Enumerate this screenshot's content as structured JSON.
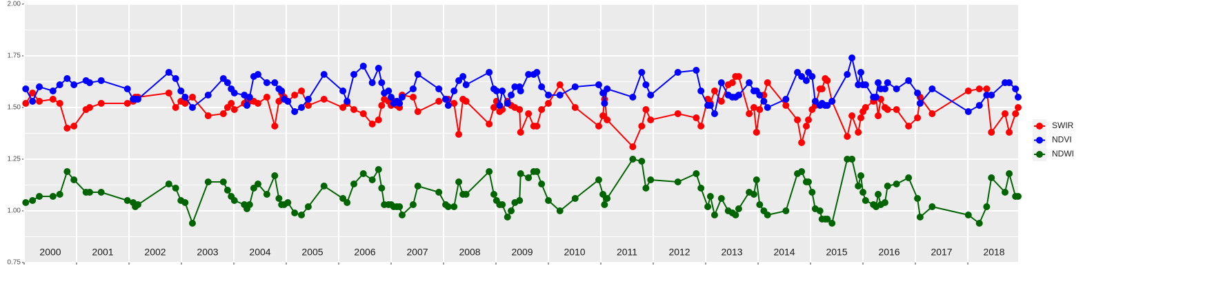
{
  "chart_data": {
    "type": "line",
    "x": [
      2000.03,
      2000.16,
      2000.29,
      2000.55,
      2000.68,
      2000.82,
      2000.95,
      2001.18,
      2001.25,
      2001.47,
      2001.97,
      2002.08,
      2002.12,
      2002.17,
      2002.76,
      2002.89,
      2002.99,
      2003.07,
      2003.21,
      2003.51,
      2003.8,
      2003.88,
      2003.95,
      2004.01,
      2004.2,
      2004.25,
      2004.3,
      2004.38,
      2004.46,
      2004.63,
      2004.78,
      2004.86,
      2004.91,
      2004.96,
      2005.03,
      2005.16,
      2005.29,
      2005.42,
      2005.72,
      2006.08,
      2006.16,
      2006.29,
      2006.47,
      2006.64,
      2006.76,
      2006.82,
      2006.87,
      2006.95,
      2007.0,
      2007.05,
      2007.11,
      2007.16,
      2007.21,
      2007.42,
      2007.51,
      2007.91,
      2008.04,
      2008.09,
      2008.2,
      2008.29,
      2008.37,
      2008.43,
      2008.87,
      2008.96,
      2009.01,
      2009.07,
      2009.12,
      2009.22,
      2009.29,
      2009.36,
      2009.45,
      2009.47,
      2009.62,
      2009.72,
      2009.78,
      2009.87,
      2010.0,
      2010.22,
      2010.51,
      2010.96,
      2011.04,
      2011.07,
      2011.12,
      2011.61,
      2011.78,
      2011.86,
      2011.95,
      2012.47,
      2012.82,
      2012.91,
      2013.04,
      2013.09,
      2013.17,
      2013.3,
      2013.43,
      2013.51,
      2013.57,
      2013.63,
      2013.83,
      2013.92,
      2013.97,
      2014.03,
      2014.11,
      2014.18,
      2014.53,
      2014.75,
      2014.83,
      2014.92,
      2014.96,
      2015.03,
      2015.09,
      2015.18,
      2015.22,
      2015.28,
      2015.32,
      2015.41,
      2015.7,
      2015.79,
      2015.91,
      2015.96,
      2016.0,
      2016.05,
      2016.2,
      2016.25,
      2016.29,
      2016.34,
      2016.42,
      2016.47,
      2016.64,
      2016.87,
      2017.04,
      2017.09,
      2017.32,
      2018.01,
      2018.22,
      2018.36,
      2018.45,
      2018.71,
      2018.79,
      2018.91,
      2018.96
    ],
    "series": [
      {
        "name": "SWIR",
        "color": "#ff0000",
        "values": [
          1.52,
          1.57,
          1.53,
          1.54,
          1.52,
          1.4,
          1.41,
          1.49,
          1.5,
          1.52,
          1.52,
          1.53,
          1.55,
          1.55,
          1.57,
          1.5,
          1.53,
          1.52,
          1.55,
          1.46,
          1.47,
          1.5,
          1.52,
          1.49,
          1.52,
          1.53,
          1.53,
          1.53,
          1.52,
          1.55,
          1.41,
          1.53,
          1.57,
          1.55,
          1.53,
          1.56,
          1.58,
          1.51,
          1.54,
          1.5,
          1.52,
          1.49,
          1.47,
          1.42,
          1.44,
          1.51,
          1.54,
          1.53,
          1.51,
          1.53,
          1.51,
          1.5,
          1.56,
          1.55,
          1.48,
          1.53,
          1.54,
          1.54,
          1.52,
          1.37,
          1.54,
          1.53,
          1.42,
          1.5,
          1.53,
          1.48,
          1.49,
          1.53,
          1.51,
          1.5,
          1.49,
          1.38,
          1.47,
          1.41,
          1.41,
          1.49,
          1.52,
          1.61,
          1.5,
          1.41,
          1.46,
          1.54,
          1.44,
          1.31,
          1.41,
          1.49,
          1.44,
          1.47,
          1.45,
          1.41,
          1.54,
          1.52,
          1.58,
          1.53,
          1.61,
          1.62,
          1.65,
          1.65,
          1.47,
          1.5,
          1.38,
          1.49,
          1.56,
          1.62,
          1.51,
          1.44,
          1.33,
          1.41,
          1.44,
          1.49,
          1.51,
          1.59,
          1.59,
          1.64,
          1.63,
          1.53,
          1.36,
          1.46,
          1.38,
          1.45,
          1.48,
          1.5,
          1.53,
          1.55,
          1.46,
          1.54,
          1.5,
          1.49,
          1.49,
          1.41,
          1.45,
          1.55,
          1.47,
          1.58,
          1.59,
          1.59,
          1.38,
          1.47,
          1.38,
          1.47,
          1.5
        ]
      },
      {
        "name": "NDVI",
        "color": "#0000ff",
        "values": [
          1.59,
          1.53,
          1.6,
          1.58,
          1.61,
          1.64,
          1.61,
          1.63,
          1.62,
          1.63,
          1.59,
          1.54,
          1.54,
          1.54,
          1.67,
          1.64,
          1.58,
          1.55,
          1.5,
          1.56,
          1.64,
          1.62,
          1.59,
          1.57,
          1.56,
          1.51,
          1.55,
          1.65,
          1.66,
          1.62,
          1.62,
          1.59,
          1.58,
          1.54,
          1.53,
          1.48,
          1.5,
          1.54,
          1.66,
          1.58,
          1.53,
          1.66,
          1.7,
          1.62,
          1.69,
          1.62,
          1.57,
          1.58,
          1.55,
          1.52,
          1.53,
          1.52,
          1.55,
          1.59,
          1.66,
          1.59,
          1.54,
          1.51,
          1.58,
          1.63,
          1.65,
          1.61,
          1.67,
          1.59,
          1.58,
          1.51,
          1.58,
          1.52,
          1.56,
          1.6,
          1.6,
          1.58,
          1.66,
          1.66,
          1.67,
          1.6,
          1.56,
          1.56,
          1.6,
          1.61,
          1.57,
          1.52,
          1.59,
          1.55,
          1.67,
          1.61,
          1.56,
          1.67,
          1.68,
          1.58,
          1.51,
          1.51,
          1.47,
          1.62,
          1.56,
          1.55,
          1.55,
          1.56,
          1.62,
          1.58,
          1.58,
          1.56,
          1.53,
          1.5,
          1.54,
          1.67,
          1.65,
          1.63,
          1.67,
          1.65,
          1.53,
          1.51,
          1.52,
          1.51,
          1.51,
          1.53,
          1.66,
          1.74,
          1.61,
          1.67,
          1.61,
          1.61,
          1.55,
          1.55,
          1.62,
          1.59,
          1.59,
          1.62,
          1.59,
          1.63,
          1.57,
          1.52,
          1.59,
          1.48,
          1.51,
          1.56,
          1.56,
          1.62,
          1.62,
          1.59,
          1.55
        ]
      },
      {
        "name": "NDWI",
        "color": "#006400",
        "values": [
          1.04,
          1.05,
          1.07,
          1.07,
          1.08,
          1.19,
          1.15,
          1.09,
          1.09,
          1.09,
          1.05,
          1.04,
          1.02,
          1.03,
          1.13,
          1.11,
          1.05,
          1.04,
          0.94,
          1.14,
          1.14,
          1.1,
          1.07,
          1.05,
          1.03,
          1.01,
          1.03,
          1.11,
          1.13,
          1.08,
          1.17,
          1.06,
          1.03,
          1.03,
          1.04,
          0.99,
          0.98,
          1.02,
          1.12,
          1.06,
          1.04,
          1.13,
          1.18,
          1.15,
          1.2,
          1.11,
          1.03,
          1.03,
          1.03,
          1.02,
          1.02,
          1.02,
          0.98,
          1.03,
          1.12,
          1.09,
          1.03,
          1.02,
          1.02,
          1.14,
          1.08,
          1.08,
          1.19,
          1.08,
          1.05,
          1.03,
          1.03,
          0.97,
          1.0,
          1.04,
          1.05,
          1.18,
          1.16,
          1.19,
          1.19,
          1.13,
          1.05,
          1.0,
          1.06,
          1.15,
          1.08,
          1.03,
          1.06,
          1.25,
          1.24,
          1.11,
          1.15,
          1.14,
          1.18,
          1.11,
          1.02,
          1.07,
          0.98,
          1.06,
          1.0,
          0.99,
          0.98,
          1.01,
          1.09,
          1.08,
          1.15,
          1.03,
          1.0,
          0.98,
          1.0,
          1.18,
          1.19,
          1.14,
          1.14,
          1.09,
          1.01,
          1.0,
          0.96,
          0.96,
          0.96,
          0.94,
          1.25,
          1.25,
          1.12,
          1.17,
          1.09,
          1.05,
          1.03,
          1.02,
          1.08,
          1.03,
          1.04,
          1.12,
          1.13,
          1.16,
          1.06,
          0.97,
          1.02,
          0.98,
          0.94,
          1.02,
          1.16,
          1.09,
          1.18,
          1.07,
          1.07
        ]
      }
    ],
    "xlim": [
      2000,
      2018.96
    ],
    "xticks": [
      2000,
      2001,
      2002,
      2003,
      2004,
      2005,
      2006,
      2007,
      2008,
      2009,
      2010,
      2011,
      2012,
      2013,
      2014,
      2015,
      2016,
      2017,
      2018
    ],
    "year_labels": [
      {
        "value": 2000.5,
        "label": "2000"
      },
      {
        "value": 2001.5,
        "label": "2001"
      },
      {
        "value": 2002.5,
        "label": "2002"
      },
      {
        "value": 2003.5,
        "label": "2003"
      },
      {
        "value": 2004.5,
        "label": "2004"
      },
      {
        "value": 2005.5,
        "label": "2005"
      },
      {
        "value": 2006.5,
        "label": "2006"
      },
      {
        "value": 2007.5,
        "label": "2007"
      },
      {
        "value": 2008.5,
        "label": "2008"
      },
      {
        "value": 2009.5,
        "label": "2009"
      },
      {
        "value": 2010.5,
        "label": "2010"
      },
      {
        "value": 2011.5,
        "label": "2011"
      },
      {
        "value": 2012.5,
        "label": "2012"
      },
      {
        "value": 2013.5,
        "label": "2013"
      },
      {
        "value": 2014.5,
        "label": "2014"
      },
      {
        "value": 2015.5,
        "label": "2015"
      },
      {
        "value": 2016.5,
        "label": "2016"
      },
      {
        "value": 2017.5,
        "label": "2017"
      },
      {
        "value": 2018.5,
        "label": "2018"
      }
    ],
    "ylim": [
      0.75,
      2
    ],
    "yticks": [
      {
        "value": 0.75,
        "label": "0.75"
      },
      {
        "value": 1,
        "label": "1.00"
      },
      {
        "value": 1.25,
        "label": "1.25"
      },
      {
        "value": 1.5,
        "label": "1.50"
      },
      {
        "value": 1.75,
        "label": "1.75"
      },
      {
        "value": 2,
        "label": "2.00"
      }
    ],
    "grid": true,
    "legend": "right"
  }
}
